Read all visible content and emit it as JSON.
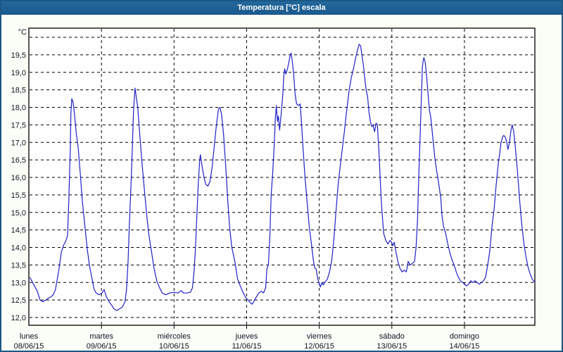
{
  "window": {
    "title": "Temperatura [°C] escala"
  },
  "colors": {
    "titlebar_top": "#24689c",
    "titlebar_bottom": "#1a5a8d",
    "window_border": "#1b5886",
    "background": "#fbfdf7",
    "plot_background": "#fefefe",
    "grid": "#000000",
    "axis": "#000000",
    "tick_text": "#101424",
    "line": "#2121c8"
  },
  "chart_data": {
    "type": "line",
    "title": "Temperatura [°C] escala",
    "ylabel": "°C",
    "xlabel": "",
    "ylim": [
      12.0,
      20.0
    ],
    "y_tick_step": 0.5,
    "grid": "dashed",
    "legend": "none",
    "y_ticks": [
      {
        "value": 19.5,
        "label": "19,5"
      },
      {
        "value": 19.0,
        "label": "19,0"
      },
      {
        "value": 18.5,
        "label": "18,5"
      },
      {
        "value": 18.0,
        "label": "18,0"
      },
      {
        "value": 17.5,
        "label": "17,5"
      },
      {
        "value": 17.0,
        "label": "17,0"
      },
      {
        "value": 16.5,
        "label": "16,5"
      },
      {
        "value": 16.0,
        "label": "16,0"
      },
      {
        "value": 15.5,
        "label": "15,5"
      },
      {
        "value": 15.0,
        "label": "15,0"
      },
      {
        "value": 14.5,
        "label": "14,5"
      },
      {
        "value": 14.0,
        "label": "14,0"
      },
      {
        "value": 13.5,
        "label": "13,5"
      },
      {
        "value": 13.0,
        "label": "13,0"
      },
      {
        "value": 12.5,
        "label": "12,5"
      },
      {
        "value": 12.0,
        "label": "12,0"
      }
    ],
    "x_days": [
      {
        "name": "lunes",
        "date": "08/06/15"
      },
      {
        "name": "martes",
        "date": "09/06/15"
      },
      {
        "name": "miércoles",
        "date": "10/06/15"
      },
      {
        "name": "jueves",
        "date": "11/06/15"
      },
      {
        "name": "viernes",
        "date": "12/06/15"
      },
      {
        "name": "sábado",
        "date": "13/06/15"
      },
      {
        "name": "domingo",
        "date": "14/06/15"
      }
    ],
    "series": [
      {
        "name": "Temperatura",
        "unit": "°C",
        "x_unit": "hours_from_2015-06-08_00:00",
        "points": [
          [
            0.3,
            13.15
          ],
          [
            2.8,
            12.75
          ],
          [
            3.7,
            12.5
          ],
          [
            4.6,
            12.45
          ],
          [
            5.6,
            12.5
          ],
          [
            6.5,
            12.55
          ],
          [
            7.4,
            12.6
          ],
          [
            8.1,
            12.65
          ],
          [
            8.8,
            12.8
          ],
          [
            9.3,
            13.05
          ],
          [
            10,
            13.4
          ],
          [
            10.7,
            13.85
          ],
          [
            11.4,
            14.05
          ],
          [
            12.3,
            14.2
          ],
          [
            12.8,
            14.35
          ],
          [
            13.2,
            15.3
          ],
          [
            13.7,
            16.8
          ],
          [
            13.9,
            17.8
          ],
          [
            14.2,
            18.25
          ],
          [
            14.6,
            18.15
          ],
          [
            15.1,
            17.8
          ],
          [
            15.6,
            17.3
          ],
          [
            16.3,
            16.85
          ],
          [
            17,
            16.1
          ],
          [
            17.7,
            15.3
          ],
          [
            18.6,
            14.55
          ],
          [
            19.3,
            13.95
          ],
          [
            20,
            13.5
          ],
          [
            20.9,
            13.1
          ],
          [
            21.6,
            12.8
          ],
          [
            22.3,
            12.7
          ],
          [
            23.2,
            12.65
          ],
          [
            24.2,
            12.7
          ],
          [
            24.9,
            12.8
          ],
          [
            25.6,
            12.6
          ],
          [
            26.5,
            12.45
          ],
          [
            27.4,
            12.35
          ],
          [
            28.1,
            12.25
          ],
          [
            29,
            12.2
          ],
          [
            30,
            12.25
          ],
          [
            30.9,
            12.3
          ],
          [
            31.8,
            12.45
          ],
          [
            32.3,
            12.8
          ],
          [
            32.8,
            13.6
          ],
          [
            33.2,
            14.6
          ],
          [
            33.7,
            15.6
          ],
          [
            34.2,
            16.8
          ],
          [
            34.6,
            17.9
          ],
          [
            35.1,
            18.55
          ],
          [
            35.5,
            18.3
          ],
          [
            36,
            18
          ],
          [
            36.7,
            17.2
          ],
          [
            37.4,
            16.4
          ],
          [
            38.3,
            15.55
          ],
          [
            39,
            14.9
          ],
          [
            39.7,
            14.35
          ],
          [
            40.7,
            13.8
          ],
          [
            41.4,
            13.4
          ],
          [
            42.3,
            13.05
          ],
          [
            43.2,
            12.85
          ],
          [
            44.1,
            12.7
          ],
          [
            45.3,
            12.65
          ],
          [
            46.5,
            12.7
          ],
          [
            47.9,
            12.72
          ],
          [
            49.3,
            12.7
          ],
          [
            50.4,
            12.77
          ],
          [
            51.1,
            12.7
          ],
          [
            52.3,
            12.7
          ],
          [
            53.4,
            12.72
          ],
          [
            54.1,
            12.85
          ],
          [
            54.6,
            13.3
          ],
          [
            55.1,
            14
          ],
          [
            55.5,
            14.8
          ],
          [
            56,
            15.8
          ],
          [
            56.5,
            16.5
          ],
          [
            56.7,
            16.65
          ],
          [
            57.2,
            16.35
          ],
          [
            57.9,
            16
          ],
          [
            58.5,
            15.8
          ],
          [
            59.2,
            15.75
          ],
          [
            59.9,
            15.9
          ],
          [
            60.6,
            16.3
          ],
          [
            61.3,
            16.9
          ],
          [
            62,
            17.5
          ],
          [
            62.7,
            17.95
          ],
          [
            63.2,
            18
          ],
          [
            63.7,
            17.8
          ],
          [
            64.4,
            17.2
          ],
          [
            65.1,
            16.3
          ],
          [
            65.8,
            15.3
          ],
          [
            66.4,
            14.55
          ],
          [
            67.1,
            14
          ],
          [
            68.1,
            13.6
          ],
          [
            69,
            13.1
          ],
          [
            69.9,
            12.9
          ],
          [
            70.9,
            12.7
          ],
          [
            71.8,
            12.55
          ],
          [
            72.5,
            12.5
          ],
          [
            73.2,
            12.42
          ],
          [
            73.9,
            12.38
          ],
          [
            74.6,
            12.5
          ],
          [
            75.3,
            12.6
          ],
          [
            76,
            12.7
          ],
          [
            76.9,
            12.75
          ],
          [
            77.6,
            12.7
          ],
          [
            78.3,
            12.85
          ],
          [
            78.7,
            13.4
          ],
          [
            79.2,
            13.5
          ],
          [
            79.7,
            14.4
          ],
          [
            80.1,
            15.5
          ],
          [
            80.6,
            16.1
          ],
          [
            81.1,
            16.9
          ],
          [
            81.5,
            17.7
          ],
          [
            81.8,
            18.05
          ],
          [
            82.2,
            17.6
          ],
          [
            82.5,
            17.75
          ],
          [
            82.9,
            17.35
          ],
          [
            83.4,
            17.8
          ],
          [
            83.9,
            18.3
          ],
          [
            84.3,
            18.9
          ],
          [
            84.6,
            19.1
          ],
          [
            85,
            18.95
          ],
          [
            85.5,
            19.1
          ],
          [
            86,
            19.3
          ],
          [
            86.4,
            19.5
          ],
          [
            86.7,
            19.55
          ],
          [
            87.1,
            19.3
          ],
          [
            87.6,
            18.9
          ],
          [
            88,
            18.4
          ],
          [
            88.5,
            18.1
          ],
          [
            89.2,
            18.05
          ],
          [
            89.7,
            18.1
          ],
          [
            90.1,
            17.6
          ],
          [
            90.6,
            16.9
          ],
          [
            91.3,
            16
          ],
          [
            92,
            15.3
          ],
          [
            92.7,
            14.6
          ],
          [
            93.4,
            14.1
          ],
          [
            94.1,
            13.6
          ],
          [
            94.6,
            13.4
          ],
          [
            95,
            13.38
          ],
          [
            95.5,
            13.1
          ],
          [
            96,
            12.97
          ],
          [
            96.4,
            12.87
          ],
          [
            96.9,
            13
          ],
          [
            97.3,
            12.93
          ],
          [
            97.8,
            13
          ],
          [
            98.3,
            13.05
          ],
          [
            98.7,
            13.1
          ],
          [
            99.4,
            13.3
          ],
          [
            100.1,
            13.6
          ],
          [
            100.8,
            14.2
          ],
          [
            101.5,
            15
          ],
          [
            102.2,
            15.75
          ],
          [
            102.9,
            16.3
          ],
          [
            103.6,
            16.8
          ],
          [
            104.3,
            17.3
          ],
          [
            104.8,
            17.7
          ],
          [
            105.2,
            18
          ],
          [
            105.9,
            18.5
          ],
          [
            106.6,
            18.85
          ],
          [
            107.3,
            19.1
          ],
          [
            108,
            19.4
          ],
          [
            108.7,
            19.65
          ],
          [
            109.2,
            19.8
          ],
          [
            109.7,
            19.75
          ],
          [
            110.1,
            19.5
          ],
          [
            110.6,
            19.2
          ],
          [
            111.1,
            18.8
          ],
          [
            111.5,
            18.5
          ],
          [
            112,
            18.3
          ],
          [
            112.4,
            17.9
          ],
          [
            112.9,
            17.6
          ],
          [
            113.4,
            17.45
          ],
          [
            113.8,
            17.5
          ],
          [
            114.3,
            17.3
          ],
          [
            114.8,
            17.55
          ],
          [
            115.2,
            17.5
          ],
          [
            115.7,
            16.8
          ],
          [
            116.2,
            15.9
          ],
          [
            116.6,
            15.2
          ],
          [
            117.3,
            14.4
          ],
          [
            118,
            14.2
          ],
          [
            118.7,
            14.1
          ],
          [
            119.4,
            14.2
          ],
          [
            119.9,
            14.15
          ],
          [
            120.3,
            14.05
          ],
          [
            120.8,
            14.15
          ],
          [
            121.3,
            13.9
          ],
          [
            122,
            13.6
          ],
          [
            122.7,
            13.4
          ],
          [
            123.4,
            13.3
          ],
          [
            124.1,
            13.35
          ],
          [
            124.8,
            13.3
          ],
          [
            125.4,
            13.6
          ],
          [
            126.1,
            13.5
          ],
          [
            126.8,
            13.55
          ],
          [
            127.5,
            13.6
          ],
          [
            128,
            14
          ],
          [
            128.5,
            14.8
          ],
          [
            128.9,
            16
          ],
          [
            129.4,
            17.3
          ],
          [
            129.9,
            18.6
          ],
          [
            130.1,
            19.15
          ],
          [
            130.3,
            19.3
          ],
          [
            130.6,
            19.42
          ],
          [
            131,
            19.3
          ],
          [
            131.5,
            18.9
          ],
          [
            132,
            18.35
          ],
          [
            132.4,
            17.95
          ],
          [
            132.9,
            17.7
          ],
          [
            133.6,
            17.1
          ],
          [
            134.3,
            16.5
          ],
          [
            134.8,
            16.2
          ],
          [
            135.2,
            16
          ],
          [
            135.7,
            15.7
          ],
          [
            136.2,
            15.4
          ],
          [
            136.6,
            14.9
          ],
          [
            137.1,
            14.6
          ],
          [
            137.8,
            14.4
          ],
          [
            138.5,
            14.1
          ],
          [
            139.2,
            13.85
          ],
          [
            139.9,
            13.65
          ],
          [
            140.6,
            13.5
          ],
          [
            141.3,
            13.3
          ],
          [
            142,
            13.15
          ],
          [
            142.7,
            13.05
          ],
          [
            143.4,
            13
          ],
          [
            144.1,
            12.95
          ],
          [
            144.7,
            12.9
          ],
          [
            145.4,
            12.95
          ],
          [
            146.1,
            13.05
          ],
          [
            146.8,
            13
          ],
          [
            147.5,
            13.05
          ],
          [
            148.2,
            13
          ],
          [
            148.9,
            12.95
          ],
          [
            149.6,
            13
          ],
          [
            150.3,
            13.05
          ],
          [
            151,
            13.15
          ],
          [
            151.7,
            13.5
          ],
          [
            152.4,
            13.9
          ],
          [
            153.1,
            14.6
          ],
          [
            153.8,
            15.1
          ],
          [
            154.5,
            15.8
          ],
          [
            155.2,
            16.4
          ],
          [
            155.7,
            16.7
          ],
          [
            156.1,
            17
          ],
          [
            156.6,
            17.15
          ],
          [
            157,
            17.2
          ],
          [
            157.5,
            17.15
          ],
          [
            158,
            17
          ],
          [
            158.4,
            16.8
          ],
          [
            158.9,
            17
          ],
          [
            159.4,
            17.35
          ],
          [
            159.8,
            17.5
          ],
          [
            160.3,
            17.3
          ],
          [
            160.8,
            16.9
          ],
          [
            161.5,
            16.2
          ],
          [
            162.2,
            15.4
          ],
          [
            162.9,
            14.7
          ],
          [
            163.6,
            14.15
          ],
          [
            164.3,
            13.75
          ],
          [
            165,
            13.45
          ],
          [
            165.7,
            13.25
          ],
          [
            166.4,
            13.1
          ],
          [
            166.8,
            13.05
          ],
          [
            167.3,
            13
          ]
        ]
      }
    ]
  }
}
